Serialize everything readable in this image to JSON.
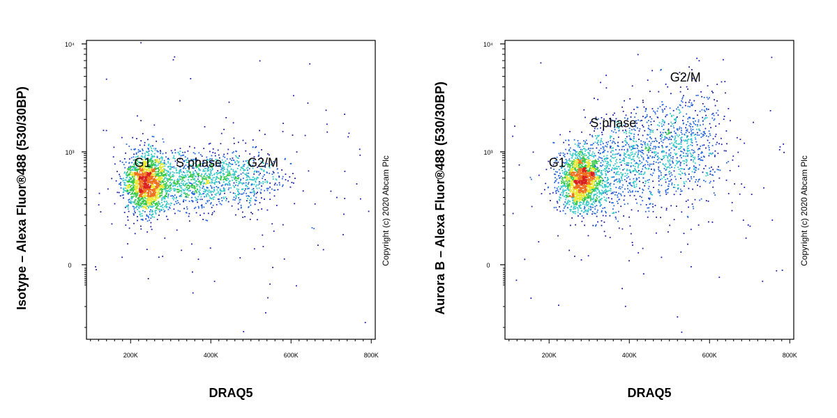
{
  "copyright": "Copyright (c) 2020 Abcam Plc",
  "colors": {
    "density": [
      "#1a1aa8",
      "#2266dd",
      "#33c8c8",
      "#33c84a",
      "#e8e830",
      "#f07020",
      "#d82020"
    ]
  },
  "chart_data": [
    {
      "type": "scatter",
      "subtype": "flow-cytometry density dot plot",
      "title": "",
      "xlabel": "DRAQ5",
      "ylabel": "Isotype – Alexa Fluor®488 (530/30BP)",
      "xlim": [
        90000,
        810000
      ],
      "x_ticks": [
        200000,
        400000,
        600000,
        800000
      ],
      "x_tick_labels": [
        "200K",
        "400K",
        "600K",
        "800K"
      ],
      "y_scale": "biexponential",
      "y_ticks": [
        0,
        1000,
        10000
      ],
      "y_tick_labels": [
        "0",
        "10³",
        "10⁴"
      ],
      "grid": false,
      "legend": "none",
      "annotations": [
        {
          "text": "G1",
          "x": 230000,
          "y": 400
        },
        {
          "text": "S phase",
          "x": 370000,
          "y": 400
        },
        {
          "text": "G2/M",
          "x": 530000,
          "y": 400
        }
      ],
      "populations": [
        {
          "name": "G1",
          "center_x": 240000,
          "center_y": 150,
          "count": 1800
        },
        {
          "name": "S phase",
          "center_x": 350000,
          "center_y": 180,
          "count": 700
        },
        {
          "name": "G2/M",
          "center_x": 470000,
          "center_y": 200,
          "count": 500
        }
      ]
    },
    {
      "type": "scatter",
      "subtype": "flow-cytometry density dot plot",
      "title": "",
      "xlabel": "DRAQ5",
      "ylabel": "Aurora B – Alexa Fluor®488 (530/30BP)",
      "xlim": [
        90000,
        810000
      ],
      "x_ticks": [
        200000,
        400000,
        600000,
        800000
      ],
      "x_tick_labels": [
        "200K",
        "400K",
        "600K",
        "800K"
      ],
      "y_scale": "biexponential",
      "y_ticks": [
        0,
        1000,
        10000
      ],
      "y_tick_labels": [
        "0",
        "10³",
        "10⁴"
      ],
      "grid": false,
      "legend": "none",
      "annotations": [
        {
          "text": "G1",
          "x": 220000,
          "y": 400
        },
        {
          "text": "S phase",
          "x": 360000,
          "y": 1700
        },
        {
          "text": "G2/M",
          "x": 540000,
          "y": 4500
        }
      ],
      "populations": [
        {
          "name": "G1",
          "center_x": 280000,
          "center_y": 180,
          "count": 1800
        },
        {
          "name": "S phase",
          "center_x": 390000,
          "center_y": 600,
          "count": 700
        },
        {
          "name": "G2/M",
          "center_x": 530000,
          "center_y": 1200,
          "count": 700
        }
      ]
    }
  ]
}
